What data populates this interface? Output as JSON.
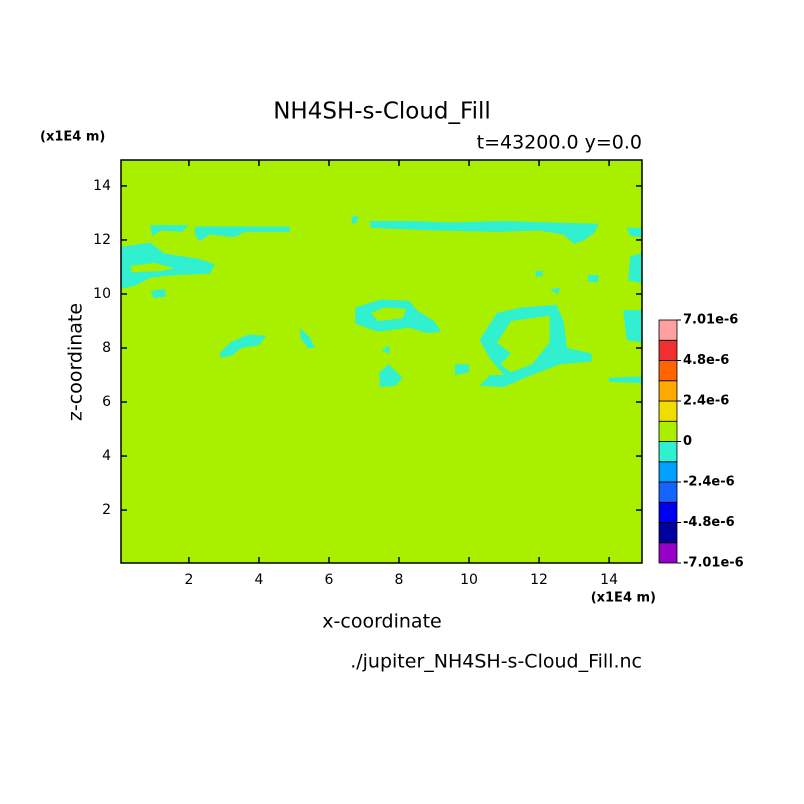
{
  "chart_data": {
    "type": "filled-contour",
    "title": "NH4SH-s-Cloud_Fill",
    "subtitle": "t=43200.0 y=0.0",
    "x_unit": "(x1E4 m)",
    "y_unit": "(x1E4 m)",
    "xlabel": "x-coordinate",
    "ylabel": "z-coordinate",
    "source": "./jupiter_NH4SH-s-Cloud_Fill.nc",
    "xlim": [
      0.06,
      14.94
    ],
    "ylim": [
      0.04,
      14.96
    ],
    "xticks": [
      2,
      4,
      6,
      8,
      10,
      12,
      14
    ],
    "yticks": [
      2,
      4,
      6,
      8,
      10,
      12,
      14
    ],
    "background_color": "#a8f000",
    "regions": [
      {
        "color": "#30f0d0",
        "rings": [
          [
            [
              2.17,
              12.5
            ],
            [
              4.88,
              12.5
            ],
            [
              4.88,
              12.3
            ],
            [
              3.6,
              12.3
            ],
            [
              3.3,
              12.1
            ],
            [
              2.6,
              12.2
            ],
            [
              2.3,
              11.95
            ],
            [
              2.17,
              12.2
            ]
          ]
        ]
      },
      {
        "color": "#30f0d0",
        "rings": [
          [
            [
              0.89,
              12.55
            ],
            [
              2.0,
              12.55
            ],
            [
              1.8,
              12.3
            ],
            [
              1.2,
              12.35
            ],
            [
              0.95,
              12.15
            ]
          ]
        ]
      },
      {
        "color": "#30f0d0",
        "rings": [
          [
            [
              6.65,
              12.86
            ],
            [
              6.85,
              12.9
            ],
            [
              6.8,
              12.65
            ],
            [
              6.65,
              12.6
            ]
          ]
        ]
      },
      {
        "color": "#30f0d0",
        "rings": [
          [
            [
              7.16,
              12.7
            ],
            [
              8.3,
              12.7
            ],
            [
              9.5,
              12.65
            ],
            [
              11.0,
              12.7
            ],
            [
              12.3,
              12.65
            ],
            [
              13.7,
              12.6
            ],
            [
              13.6,
              12.3
            ],
            [
              13.3,
              12.0
            ],
            [
              13.0,
              11.85
            ],
            [
              12.7,
              12.2
            ],
            [
              12.0,
              12.35
            ],
            [
              10.8,
              12.3
            ],
            [
              9.0,
              12.35
            ],
            [
              8.0,
              12.4
            ],
            [
              7.2,
              12.45
            ]
          ]
        ]
      },
      {
        "color": "#30f0d0",
        "rings": [
          [
            [
              14.5,
              12.45
            ],
            [
              14.94,
              12.45
            ],
            [
              14.94,
              12.1
            ],
            [
              14.6,
              12.15
            ]
          ]
        ]
      },
      {
        "color": "#30f0d0",
        "rings": [
          [
            [
              0.06,
              11.75
            ],
            [
              0.9,
              11.9
            ],
            [
              1.3,
              11.5
            ],
            [
              2.3,
              11.3
            ],
            [
              2.74,
              11.1
            ],
            [
              2.6,
              10.75
            ],
            [
              1.6,
              10.7
            ],
            [
              0.9,
              10.6
            ],
            [
              0.46,
              10.3
            ],
            [
              0.06,
              10.2
            ]
          ],
          [
            [
              0.35,
              11.05
            ],
            [
              1.03,
              11.15
            ],
            [
              1.6,
              10.95
            ],
            [
              1.2,
              10.85
            ],
            [
              0.35,
              10.8
            ]
          ]
        ]
      },
      {
        "color": "#30f0d0",
        "rings": [
          [
            [
              0.9,
              10.1
            ],
            [
              1.3,
              10.2
            ],
            [
              1.35,
              9.9
            ],
            [
              1.0,
              9.85
            ]
          ]
        ]
      },
      {
        "color": "#30f0d0",
        "rings": [
          [
            [
              2.88,
              7.8
            ],
            [
              3.17,
              8.2
            ],
            [
              3.7,
              8.5
            ],
            [
              4.2,
              8.45
            ],
            [
              4.0,
              8.1
            ],
            [
              3.5,
              8.0
            ],
            [
              3.2,
              7.7
            ],
            [
              2.9,
              7.65
            ]
          ]
        ]
      },
      {
        "color": "#30f0d0",
        "rings": [
          [
            [
              5.16,
              8.75
            ],
            [
              5.45,
              8.4
            ],
            [
              5.6,
              8.0
            ],
            [
              5.4,
              8.0
            ],
            [
              5.2,
              8.35
            ]
          ]
        ]
      },
      {
        "color": "#30f0d0",
        "rings": [
          [
            [
              6.75,
              9.5
            ],
            [
              7.5,
              9.8
            ],
            [
              8.3,
              9.75
            ],
            [
              8.5,
              9.4
            ],
            [
              9.0,
              9.0
            ],
            [
              9.2,
              8.6
            ],
            [
              8.8,
              8.55
            ],
            [
              8.3,
              8.75
            ],
            [
              7.4,
              8.6
            ],
            [
              6.75,
              8.9
            ]
          ],
          [
            [
              7.2,
              9.3
            ],
            [
              7.6,
              9.5
            ],
            [
              8.2,
              9.45
            ],
            [
              8.1,
              9.1
            ],
            [
              7.4,
              9.0
            ]
          ]
        ]
      },
      {
        "color": "#30f0d0",
        "rings": [
          [
            [
              7.5,
              7.9
            ],
            [
              7.7,
              8.1
            ],
            [
              7.75,
              7.8
            ]
          ]
        ]
      },
      {
        "color": "#30f0d0",
        "rings": [
          [
            [
              7.44,
              7.1
            ],
            [
              7.7,
              7.4
            ],
            [
              8.1,
              6.9
            ],
            [
              7.9,
              6.6
            ],
            [
              7.45,
              6.55
            ]
          ]
        ]
      },
      {
        "color": "#30f0d0",
        "rings": [
          [
            [
              9.6,
              7.4
            ],
            [
              10.0,
              7.4
            ],
            [
              10.0,
              7.1
            ],
            [
              9.6,
              7.0
            ]
          ]
        ]
      },
      {
        "color": "#30f0d0",
        "rings": [
          [
            [
              10.3,
              8.3
            ],
            [
              10.8,
              9.3
            ],
            [
              11.5,
              9.5
            ],
            [
              12.5,
              9.6
            ],
            [
              12.7,
              9.0
            ],
            [
              12.8,
              8.0
            ],
            [
              13.5,
              7.8
            ],
            [
              13.5,
              7.5
            ],
            [
              12.6,
              7.4
            ],
            [
              11.6,
              6.9
            ],
            [
              11.0,
              6.55
            ],
            [
              10.3,
              6.6
            ],
            [
              10.6,
              7.0
            ],
            [
              11.0,
              7.0
            ],
            [
              10.6,
              7.6
            ]
          ],
          [
            [
              10.8,
              8.2
            ],
            [
              11.2,
              9.0
            ],
            [
              12.3,
              9.2
            ],
            [
              12.3,
              8.2
            ],
            [
              11.8,
              7.4
            ],
            [
              11.2,
              7.1
            ],
            [
              10.9,
              7.4
            ],
            [
              11.2,
              7.8
            ]
          ]
        ]
      },
      {
        "color": "#30f0d0",
        "rings": [
          [
            [
              14.4,
              9.4
            ],
            [
              14.94,
              9.4
            ],
            [
              14.94,
              8.2
            ],
            [
              14.5,
              8.3
            ]
          ]
        ]
      },
      {
        "color": "#30f0d0",
        "rings": [
          [
            [
              14.0,
              6.9
            ],
            [
              14.94,
              6.95
            ],
            [
              14.94,
              6.7
            ],
            [
              14.0,
              6.75
            ]
          ]
        ]
      },
      {
        "color": "#30f0d0",
        "rings": [
          [
            [
              13.4,
              10.7
            ],
            [
              13.7,
              10.7
            ],
            [
              13.7,
              10.45
            ],
            [
              13.4,
              10.45
            ]
          ]
        ]
      },
      {
        "color": "#30f0d0",
        "rings": [
          [
            [
              14.6,
              11.4
            ],
            [
              14.94,
              11.5
            ],
            [
              14.94,
              10.4
            ],
            [
              14.55,
              10.5
            ]
          ]
        ]
      },
      {
        "color": "#30f0d0",
        "rings": [
          [
            [
              12.3,
              10.15
            ],
            [
              12.6,
              10.25
            ],
            [
              12.55,
              10.0
            ]
          ]
        ]
      },
      {
        "color": "#30f0d0",
        "rings": [
          [
            [
              11.9,
              10.85
            ],
            [
              12.1,
              10.85
            ],
            [
              12.1,
              10.65
            ],
            [
              11.9,
              10.65
            ]
          ]
        ]
      }
    ],
    "colorbar": {
      "levels": [
        {
          "value": -7.01e-06,
          "label": "-7.01e-6"
        },
        {
          "value": -4.8e-06,
          "label": "-4.8e-6"
        },
        {
          "value": -2.4e-06,
          "label": "-2.4e-6"
        },
        0,
        {
          "value": 2.4e-06,
          "label": "2.4e-6"
        },
        {
          "value": 4.8e-06,
          "label": "4.8e-6"
        },
        {
          "value": 7.01e-06,
          "label": "7.01e-6"
        }
      ],
      "colors": [
        "#9600c8",
        "#0000a0",
        "#0000f0",
        "#1464ff",
        "#00a0ff",
        "#30f0d0",
        "#a8f000",
        "#f0dc00",
        "#ffaa00",
        "#ff6400",
        "#f03030",
        "#ffa0a0"
      ]
    }
  }
}
